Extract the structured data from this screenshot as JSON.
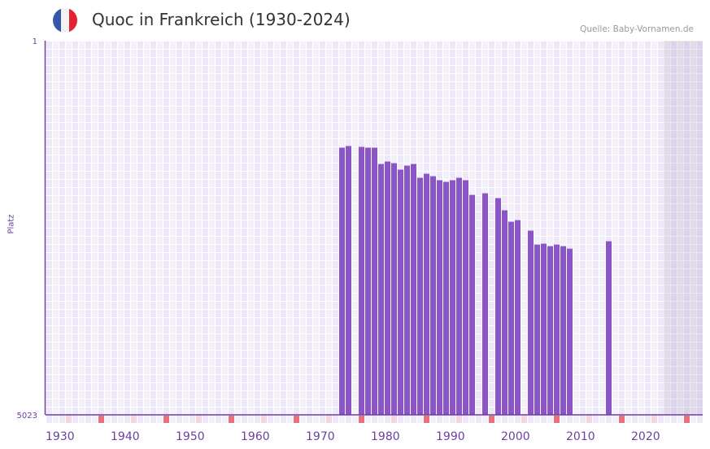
{
  "header": {
    "title": "Quoc in Frankreich (1930-2024)",
    "source": "Quelle: Baby-Vornamen.de",
    "flag_colors": [
      "#3557a7",
      "#f3f3f3",
      "#e52330"
    ]
  },
  "chart_data": {
    "type": "bar",
    "title": "Quoc in Frankreich (1930-2024)",
    "ylabel": "Platz",
    "y_ticks": [
      "1",
      "5023"
    ],
    "ylim": [
      5023,
      1
    ],
    "xlim": [
      1930,
      2030
    ],
    "x_ticks": [
      "1930",
      "1940",
      "1950",
      "1960",
      "1970",
      "1980",
      "1990",
      "2000",
      "2010",
      "2020"
    ],
    "future_from": 2025,
    "bar_color": "#8b55c8",
    "x": [
      1975,
      1976,
      1978,
      1979,
      1980,
      1981,
      1982,
      1983,
      1984,
      1985,
      1986,
      1987,
      1988,
      1989,
      1990,
      1991,
      1992,
      1993,
      1994,
      1995,
      1997,
      1999,
      2000,
      2001,
      2002,
      2004,
      2005,
      2006,
      2007,
      2008,
      2009,
      2010,
      2016
    ],
    "values": [
      1437,
      1415,
      1426,
      1437,
      1437,
      1656,
      1623,
      1645,
      1732,
      1678,
      1656,
      1841,
      1787,
      1820,
      1874,
      1896,
      1874,
      1841,
      1874,
      2071,
      2049,
      2114,
      2278,
      2431,
      2409,
      2551,
      2737,
      2726,
      2759,
      2737,
      2759,
      2792,
      2693
    ]
  }
}
